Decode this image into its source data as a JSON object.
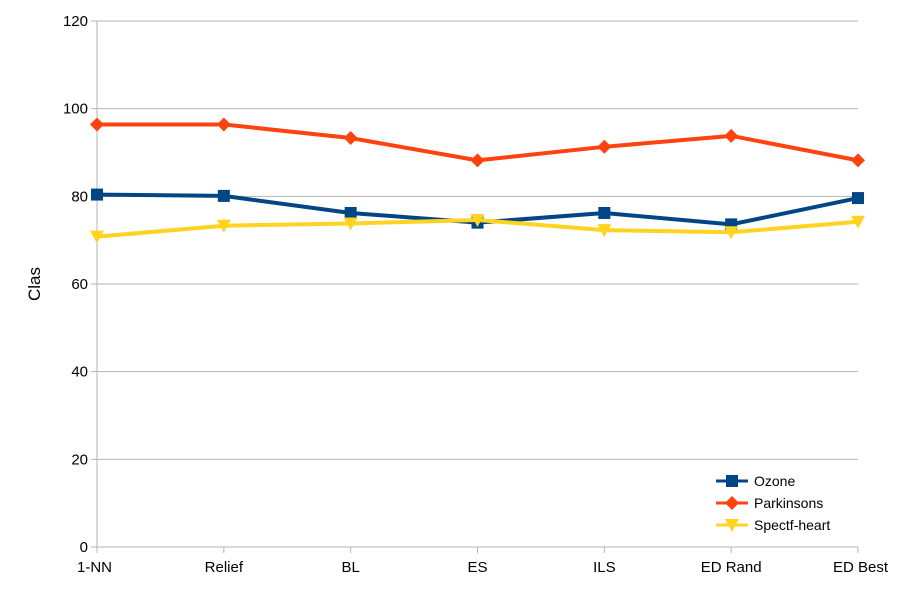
{
  "chart_data": {
    "type": "line",
    "title": "",
    "xlabel": "",
    "ylabel": "Clas",
    "categories": [
      "1-NN",
      "Relief",
      "BL",
      "ES",
      "ILS",
      "ED Rand",
      "ED Best"
    ],
    "ylim": [
      0,
      120
    ],
    "yticks": [
      0,
      20,
      40,
      60,
      80,
      100,
      120
    ],
    "grid": "horizontal",
    "legend_position": "bottom-right",
    "series": [
      {
        "name": "Ozone",
        "color": "#004586",
        "marker": "square",
        "values": [
          80.4,
          80.1,
          76.2,
          74.0,
          76.2,
          73.6,
          79.6
        ]
      },
      {
        "name": "Parkinsons",
        "color": "#ff420e",
        "marker": "diamond",
        "values": [
          96.4,
          96.4,
          93.3,
          88.2,
          91.3,
          93.8,
          88.2
        ]
      },
      {
        "name": "Spectf-heart",
        "color": "#ffd320",
        "marker": "triangle-down",
        "values": [
          70.8,
          73.3,
          73.8,
          74.6,
          72.3,
          71.8,
          74.2
        ]
      }
    ]
  }
}
